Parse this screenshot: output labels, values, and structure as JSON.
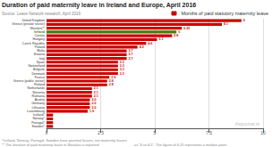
{
  "chart_data": {
    "type": "bar",
    "orientation": "horizontal",
    "title": "Duration of paid maternity leave in Ireland and Europe, April 2016",
    "annotations": [
      "Source: Leave Network research, April 2016",
      "*Iceland, Norway, Portugal, Sweden have parental leaves, not maternity leaves",
      "** The duration of paid maternity leave in Slovakia is reported",
      "as \"6-to-8.5\". The figure of 6.25 represents a median point.",
      "thejournal.ie"
    ],
    "categories": [
      "United Kingdom",
      "Greece (private sector)",
      "Slovakia**",
      "Ireland",
      "Croatia",
      "Hungary",
      "Czech Republic",
      "Poland",
      "Malta",
      "Estonia",
      "Italy",
      "Spain",
      "Switzerland",
      "Belgium",
      "Denmark",
      "France",
      "Greece (public sector)",
      "Finland",
      "Netherlands",
      "Slovenia",
      "Romania",
      "Austria",
      "Germany",
      "Lithuania",
      "Luxembourg",
      "Iceland*",
      "Norway*",
      "Portugal*",
      "Sweden*"
    ],
    "series": [
      {
        "name": "Months of paid statutory maternity leave",
        "color": "#cc0000",
        "colors": [
          "#cc0000",
          "#cc0000",
          "#cc0000",
          "#4a7a10",
          "#cc0000",
          "#cc0000",
          "#cc0000",
          "#cc0000",
          "#cc0000",
          "#cc0000",
          "#cc0000",
          "#cc0000",
          "#cc0000",
          "#cc0000",
          "#cc0000",
          "#cc0000",
          "#cc0000",
          "#cc0000",
          "#cc0000",
          "#cc0000",
          "#cc0000",
          "#cc0000",
          "#cc0000",
          "#cc0000",
          "#cc0000",
          "#cc0000",
          "#cc0000",
          "#cc0000",
          "#cc0000"
        ],
        "values": [
          9,
          8.1,
          6.25,
          6,
          5.8,
          5.1,
          4.6,
          4.2,
          3.7,
          3.7,
          3.7,
          3.3,
          3.3,
          3.3,
          3.3,
          2.9,
          2.8,
          2.8,
          2.1,
          2.1,
          2.1,
          2.0,
          2.0,
          2.0,
          1.9,
          0.3,
          0.3,
          0.3,
          0.3
        ],
        "value_labels": [
          "9",
          "8.1",
          "6.25",
          "6",
          "5.8",
          "5.1",
          "4.6",
          "4.2",
          "3.7",
          "3.7",
          "3.7",
          "3.3",
          "3.3",
          "3.3",
          "3.3",
          "2.9",
          "2.8",
          "2.8",
          "2.1",
          "2.1",
          "2.1",
          "2.0",
          "2.0",
          "2.0",
          "1.9",
          null,
          null,
          null,
          null
        ]
      }
    ],
    "xlim": [
      0,
      10
    ],
    "xticks": [
      0,
      2.5,
      5,
      7.5,
      10
    ],
    "grid": true,
    "legend": "upper right",
    "data_labels": true
  }
}
